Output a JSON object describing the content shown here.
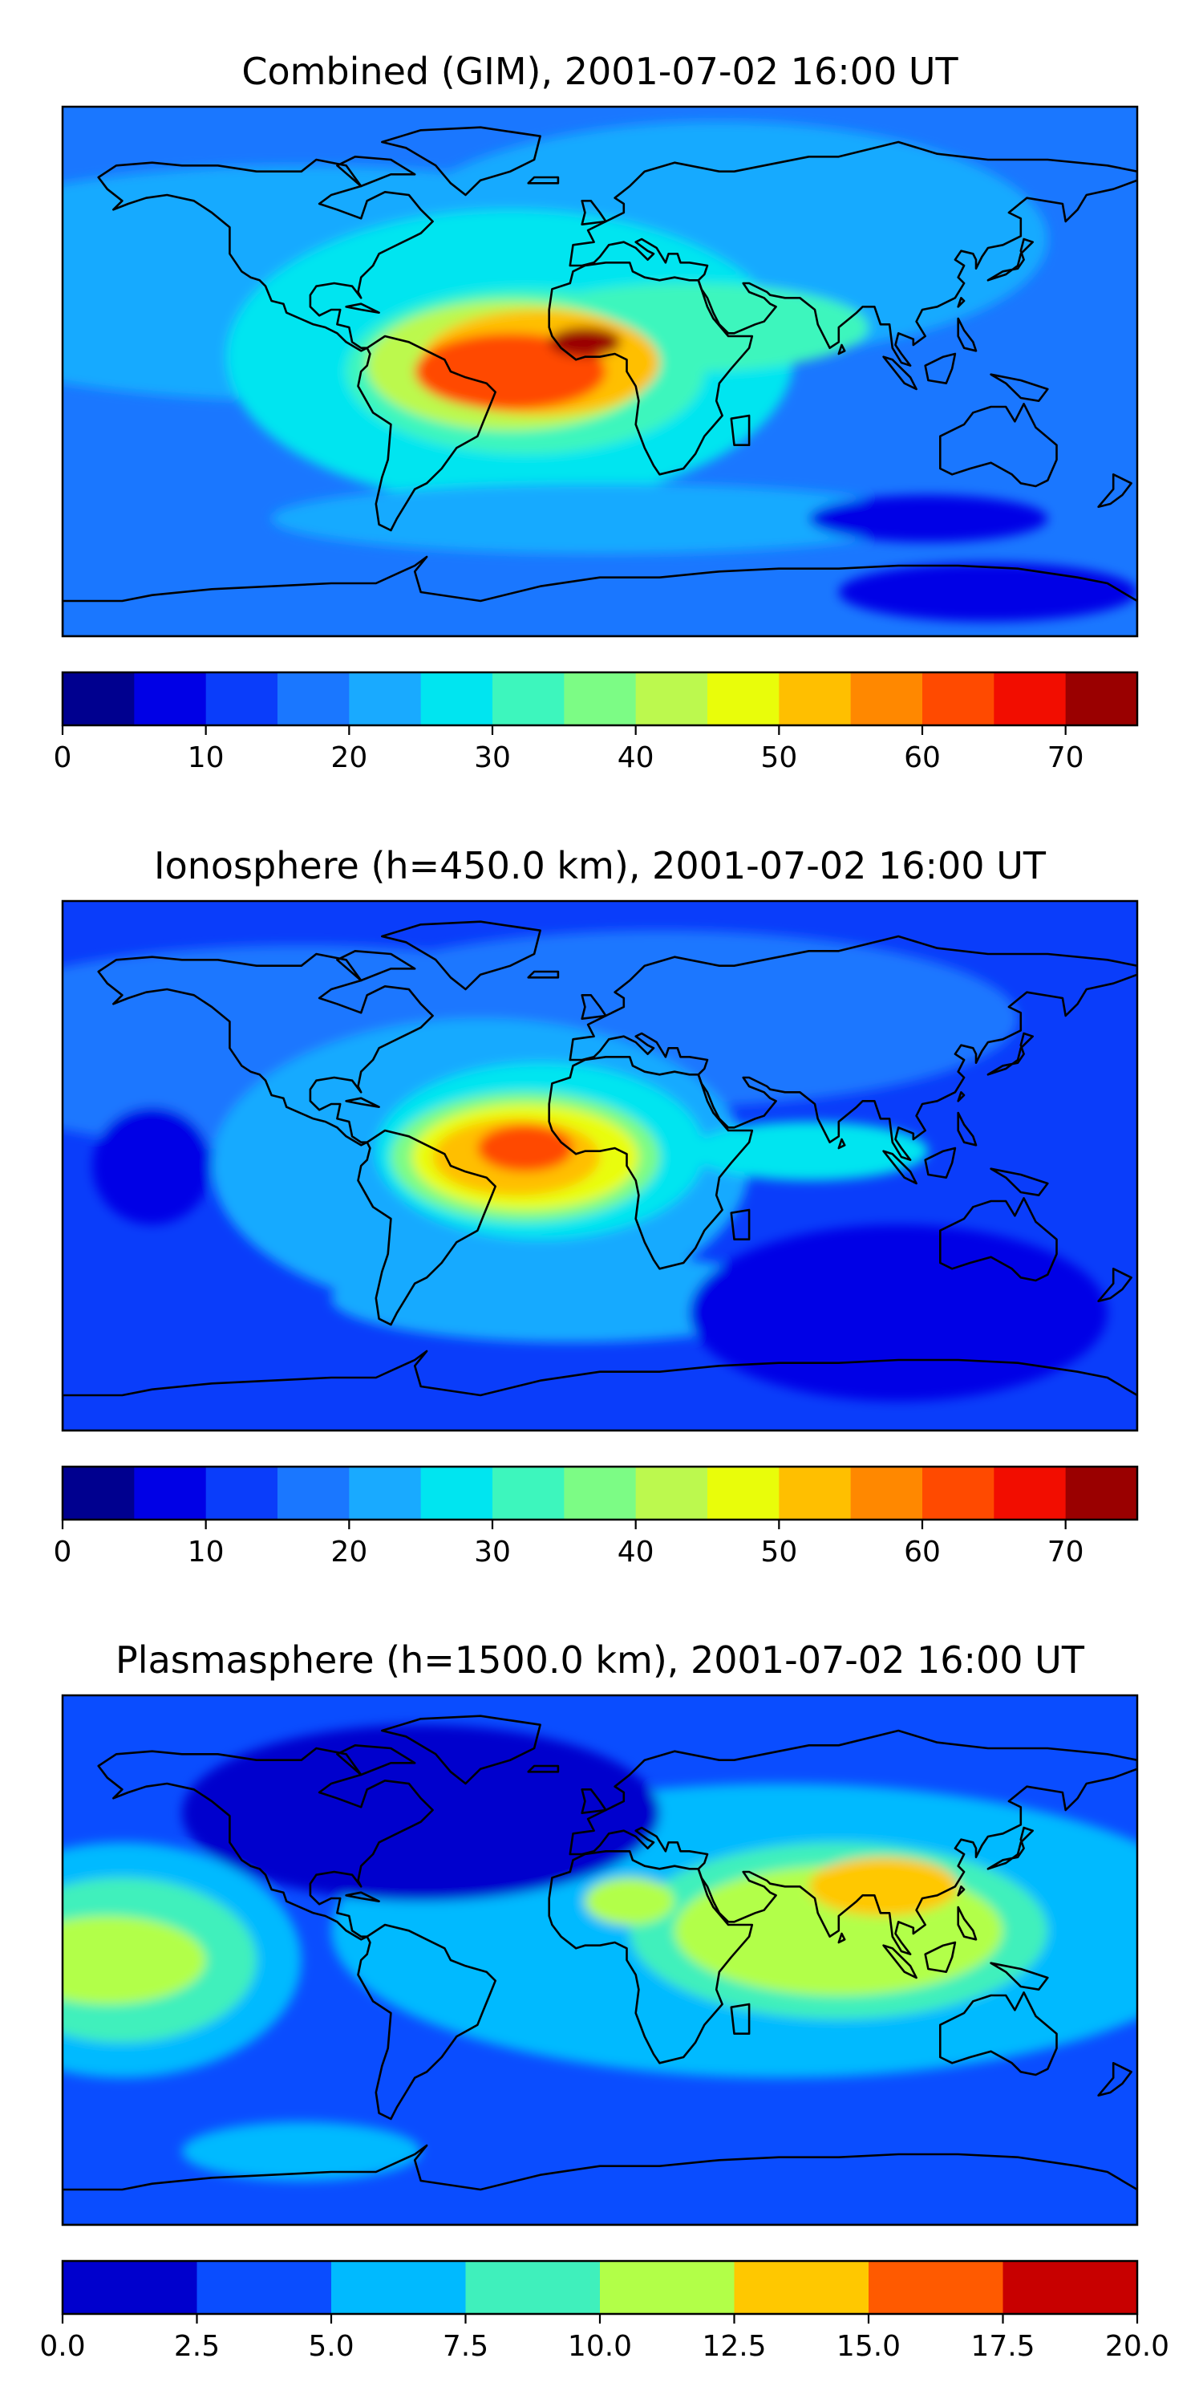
{
  "figure": {
    "panels": [
      {
        "id": "combined",
        "title": "Combined (GIM), 2001-07-02 16:00 UT",
        "colorbar": {
          "levels": [
            0,
            5,
            10,
            15,
            20,
            25,
            30,
            35,
            40,
            45,
            50,
            55,
            60,
            65,
            70,
            75
          ],
          "tick_values": [
            0,
            10,
            20,
            30,
            40,
            50,
            60,
            70
          ],
          "tick_labels": [
            "0",
            "10",
            "20",
            "30",
            "40",
            "50",
            "60",
            "70"
          ],
          "colors": [
            "#00008f",
            "#0000e6",
            "#0a3dfa",
            "#1a77ff",
            "#19aaff",
            "#00e5f0",
            "#3df6bd",
            "#7cfc85",
            "#bcf94e",
            "#e9fd0a",
            "#ffbf00",
            "#ff8800",
            "#ff4a00",
            "#f20d00",
            "#9a0000"
          ]
        },
        "map": {
          "background_level": 3,
          "blobs": [
            {
              "lon": -100,
              "lat": 30,
              "rlon": 150,
              "rlat": 40,
              "level": 4
            },
            {
              "lon": 40,
              "lat": 45,
              "rlon": 110,
              "rlat": 40,
              "level": 4
            },
            {
              "lon": -30,
              "lat": 5,
              "rlon": 95,
              "rlat": 50,
              "level": 5
            },
            {
              "lon": 0,
              "lat": -50,
              "rlon": 110,
              "rlat": 12,
              "level": 4
            },
            {
              "lon": -25,
              "lat": 0,
              "rlon": 60,
              "rlat": 28,
              "level": 6
            },
            {
              "lon": 30,
              "lat": 15,
              "rlon": 60,
              "rlat": 15,
              "level": 6
            },
            {
              "lon": -30,
              "lat": 2,
              "rlon": 48,
              "rlat": 22,
              "level": 8
            },
            {
              "lon": -20,
              "lat": 3,
              "rlon": 40,
              "rlat": 18,
              "level": 10
            },
            {
              "lon": -30,
              "lat": 0,
              "rlon": 32,
              "rlat": 13,
              "level": 12
            },
            {
              "lon": -5,
              "lat": 10,
              "rlon": 12,
              "rlat": 5,
              "level": 14
            },
            {
              "lon": 110,
              "lat": -50,
              "rlon": 40,
              "rlat": 8,
              "level": 1
            },
            {
              "lon": 130,
              "lat": -75,
              "rlon": 50,
              "rlat": 10,
              "level": 1
            }
          ]
        }
      },
      {
        "id": "ionosphere",
        "title": "Ionosphere  (h=450.0 km), 2001-07-02 16:00 UT",
        "colorbar": {
          "levels": [
            0,
            5,
            10,
            15,
            20,
            25,
            30,
            35,
            40,
            45,
            50,
            55,
            60,
            65,
            70,
            75
          ],
          "tick_values": [
            0,
            10,
            20,
            30,
            40,
            50,
            60,
            70
          ],
          "tick_labels": [
            "0",
            "10",
            "20",
            "30",
            "40",
            "50",
            "60",
            "70"
          ],
          "colors": [
            "#00008f",
            "#0000e6",
            "#0a3dfa",
            "#1a77ff",
            "#19aaff",
            "#00e5f0",
            "#3df6bd",
            "#7cfc85",
            "#bcf94e",
            "#e9fd0a",
            "#ffbf00",
            "#ff8800",
            "#ff4a00",
            "#f20d00",
            "#9a0000"
          ]
        },
        "map": {
          "background_level": 2,
          "blobs": [
            {
              "lon": -100,
              "lat": 40,
              "rlon": 130,
              "rlat": 35,
              "level": 3
            },
            {
              "lon": 20,
              "lat": 50,
              "rlon": 120,
              "rlat": 30,
              "level": 3
            },
            {
              "lon": -40,
              "lat": 0,
              "rlon": 90,
              "rlat": 50,
              "level": 4
            },
            {
              "lon": -10,
              "lat": -45,
              "rlon": 80,
              "rlat": 15,
              "level": 4
            },
            {
              "lon": -20,
              "lat": 5,
              "rlon": 55,
              "rlat": 30,
              "level": 5
            },
            {
              "lon": 70,
              "lat": 5,
              "rlon": 40,
              "rlat": 10,
              "level": 5
            },
            {
              "lon": -25,
              "lat": 3,
              "rlon": 45,
              "rlat": 22,
              "level": 7
            },
            {
              "lon": -25,
              "lat": 3,
              "rlon": 38,
              "rlat": 18,
              "level": 9
            },
            {
              "lon": -28,
              "lat": 3,
              "rlon": 28,
              "rlat": 13,
              "level": 10
            },
            {
              "lon": -25,
              "lat": 6,
              "rlon": 16,
              "rlat": 8,
              "level": 12
            },
            {
              "lon": 100,
              "lat": -50,
              "rlon": 70,
              "rlat": 30,
              "level": 1
            },
            {
              "lon": -150,
              "lat": 0,
              "rlon": 20,
              "rlat": 20,
              "level": 1
            }
          ]
        }
      },
      {
        "id": "plasmasphere",
        "title": "Plasmasphere (h=1500.0 km), 2001-07-02 16:00 UT",
        "colorbar": {
          "levels": [
            0.0,
            2.5,
            5.0,
            7.5,
            10.0,
            12.5,
            15.0,
            17.5,
            20.0
          ],
          "tick_values": [
            0.0,
            2.5,
            5.0,
            7.5,
            10.0,
            12.5,
            15.0,
            17.5,
            20.0
          ],
          "tick_labels": [
            "0.0",
            "2.5",
            "5.0",
            "7.5",
            "10.0",
            "12.5",
            "15.0",
            "17.5",
            "20.0"
          ],
          "colors": [
            "#0000cd",
            "#0a4dff",
            "#00baff",
            "#3ff0bc",
            "#b2ff48",
            "#ffc800",
            "#ff5a00",
            "#c80000"
          ]
        },
        "map": {
          "background_level": 1,
          "blobs": [
            {
              "lon": 60,
              "lat": 10,
              "rlon": 150,
              "rlat": 50,
              "level": 2
            },
            {
              "lon": -160,
              "lat": 0,
              "rlon": 60,
              "rlat": 40,
              "level": 2
            },
            {
              "lon": -60,
              "lat": 50,
              "rlon": 80,
              "rlat": 30,
              "level": 0
            },
            {
              "lon": -100,
              "lat": -65,
              "rlon": 40,
              "rlat": 10,
              "level": 2
            },
            {
              "lon": 80,
              "lat": 10,
              "rlon": 70,
              "rlat": 30,
              "level": 3
            },
            {
              "lon": -160,
              "lat": 0,
              "rlon": 45,
              "rlat": 28,
              "level": 3
            },
            {
              "lon": 80,
              "lat": 10,
              "rlon": 55,
              "rlat": 22,
              "level": 4
            },
            {
              "lon": -165,
              "lat": 0,
              "rlon": 33,
              "rlat": 15,
              "level": 4
            },
            {
              "lon": 10,
              "lat": 20,
              "rlon": 15,
              "rlat": 8,
              "level": 4
            },
            {
              "lon": 95,
              "lat": 25,
              "rlon": 25,
              "rlat": 10,
              "level": 5
            }
          ]
        }
      }
    ]
  },
  "chart_data": [
    {
      "type": "heatmap",
      "title": "Combined (GIM), 2001-07-02 16:00 UT",
      "colorbar_ticks": [
        "0",
        "10",
        "20",
        "30",
        "40",
        "50",
        "60",
        "70"
      ],
      "colorbar_range": [
        0,
        75
      ],
      "colorbar_interval": 5,
      "peak_region": "equatorial Atlantic / Gulf of Guinea",
      "approx_max": 70
    },
    {
      "type": "heatmap",
      "title": "Ionosphere  (h=450.0 km), 2001-07-02 16:00 UT",
      "colorbar_ticks": [
        "0",
        "10",
        "20",
        "30",
        "40",
        "50",
        "60",
        "70"
      ],
      "colorbar_range": [
        0,
        75
      ],
      "colorbar_interval": 5,
      "peak_region": "northern South America / equatorial Atlantic",
      "approx_max": 65
    },
    {
      "type": "heatmap",
      "title": "Plasmasphere (h=1500.0 km), 2001-07-02 16:00 UT",
      "colorbar_ticks": [
        "0.0",
        "2.5",
        "5.0",
        "7.5",
        "10.0",
        "12.5",
        "15.0",
        "17.5",
        "20.0"
      ],
      "colorbar_range": [
        0,
        20
      ],
      "colorbar_interval": 2.5,
      "peak_region": "South / East Asia",
      "approx_max": 15
    }
  ]
}
